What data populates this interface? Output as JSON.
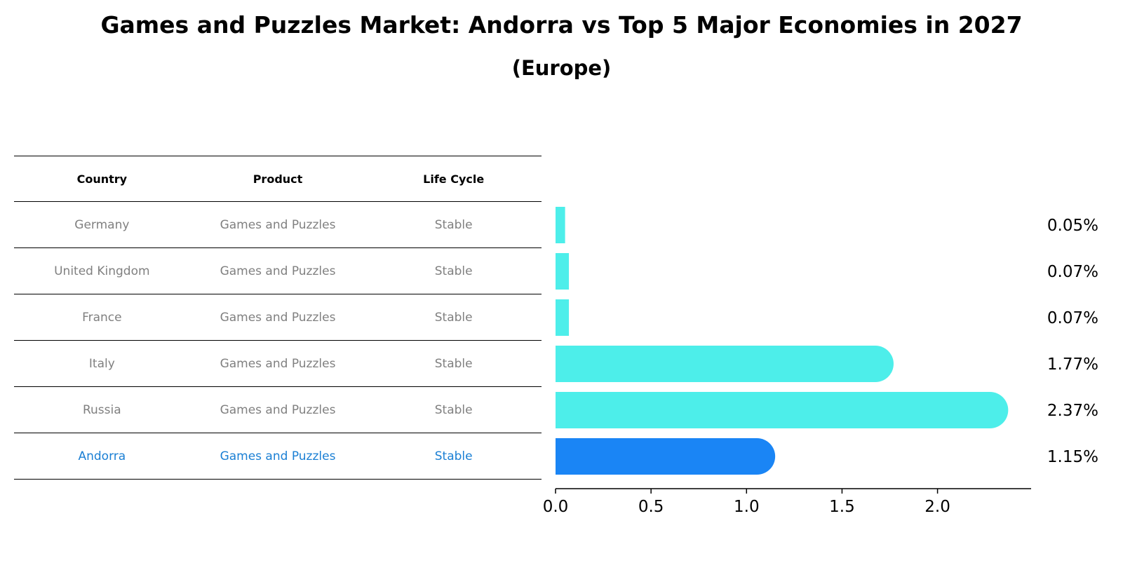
{
  "title": "Games and Puzzles Market: Andorra vs Top 5 Major Economies in 2027",
  "subtitle": "(Europe)",
  "table": {
    "headers": [
      "Country",
      "Product",
      "Life Cycle"
    ],
    "rows": [
      [
        "Germany",
        "Games and Puzzles",
        "Stable"
      ],
      [
        "United Kingdom",
        "Games and Puzzles",
        "Stable"
      ],
      [
        "France",
        "Games and Puzzles",
        "Stable"
      ],
      [
        "Italy",
        "Games and Puzzles",
        "Stable"
      ],
      [
        "Russia",
        "Games and Puzzles",
        "Stable"
      ],
      [
        "Andorra",
        "Games and Puzzles",
        "Stable"
      ]
    ],
    "highlight_row": 5
  },
  "colors": {
    "bar": "#4deeea",
    "highlight_bar": "#1a85f5",
    "highlight_text": "#1a7fd4",
    "muted_text": "#808080"
  },
  "chart_data": {
    "type": "bar",
    "orientation": "horizontal",
    "categories": [
      "Germany",
      "United Kingdom",
      "France",
      "Italy",
      "Russia",
      "Andorra"
    ],
    "values": [
      0.05,
      0.07,
      0.07,
      1.77,
      2.37,
      1.15
    ],
    "value_labels": [
      "0.05%",
      "0.07%",
      "0.07%",
      "1.77%",
      "2.37%",
      "1.15%"
    ],
    "highlight_index": 5,
    "xlim": [
      0,
      2.49
    ],
    "xticks": [
      0.0,
      0.5,
      1.0,
      1.5,
      2.0
    ],
    "xtick_labels": [
      "0.0",
      "0.5",
      "1.0",
      "1.5",
      "2.0"
    ],
    "xlabel": "",
    "ylabel": "",
    "grid": false
  }
}
